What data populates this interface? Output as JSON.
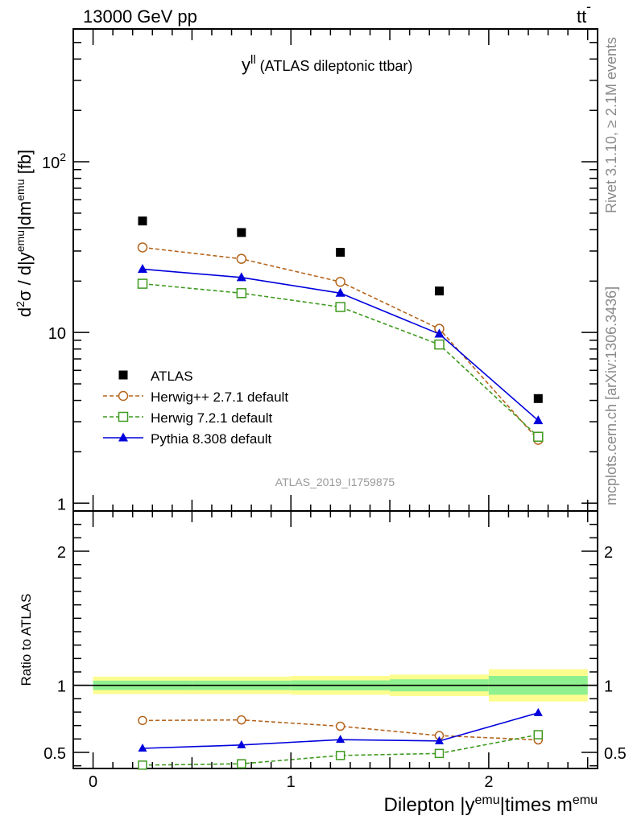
{
  "header": {
    "left": "13000 GeV pp",
    "right_main": "tt",
    "right_bar": "-"
  },
  "side_labels": {
    "rivet": "Rivet 3.1.10, ≥ 2.1M events",
    "mcplots": "mcplots.cern.ch [arXiv:1306.3436]"
  },
  "chart_data": [
    {
      "type": "scatter",
      "panel": "main",
      "title_main": "y",
      "title_sup": "ll",
      "title_rest": " (ATLAS dileptonic ttbar)",
      "watermark": "ATLAS_2019_I1759875",
      "ylabel": {
        "d1": "d",
        "s1": "2",
        "d2": "σ / d|y",
        "s2": "emu",
        "d3": "|dm",
        "s3": "emu",
        "d4": " [fb]"
      },
      "yscale": "log",
      "xlim": [
        -0.1,
        2.55
      ],
      "ylim": [
        0.9,
        600
      ],
      "ytick_labels": [
        {
          "value": 1,
          "label": "1"
        },
        {
          "value": 10,
          "label": "10"
        },
        {
          "value": 100,
          "label_base": "10",
          "label_exp": "2"
        }
      ],
      "legend_position": "middle-left",
      "series": [
        {
          "name": "ATLAS",
          "color": "#000000",
          "marker": "filled-square",
          "line": "none",
          "x": [
            0.25,
            0.75,
            1.25,
            1.75,
            2.25
          ],
          "y": [
            45.0,
            38.5,
            29.5,
            17.5,
            4.1
          ]
        },
        {
          "name": "Herwig++ 2.7.1 default",
          "color": "#b5651d",
          "marker": "open-circle",
          "line": "dashed",
          "x": [
            0.25,
            0.75,
            1.25,
            1.75,
            2.25
          ],
          "y": [
            31.5,
            27.0,
            19.8,
            10.5,
            2.35
          ]
        },
        {
          "name": "Herwig 7.2.1 default",
          "color": "#3f9a1f",
          "marker": "open-square",
          "line": "dashed",
          "x": [
            0.25,
            0.75,
            1.25,
            1.75,
            2.25
          ],
          "y": [
            19.3,
            17.0,
            14.1,
            8.5,
            2.45
          ]
        },
        {
          "name": "Pythia 8.308 default",
          "color": "#0000dd",
          "marker": "filled-triangle",
          "line": "solid",
          "x": [
            0.25,
            0.75,
            1.25,
            1.75,
            2.25
          ],
          "y": [
            23.5,
            21.0,
            17.0,
            9.8,
            3.05
          ]
        }
      ]
    },
    {
      "type": "line",
      "panel": "ratio",
      "ylabel": "Ratio to ATLAS",
      "xlabel": {
        "a": "Dilepton |y",
        "a_sup": "emu",
        "b": "|times m",
        "b_sup": "emu"
      },
      "xlim": [
        -0.1,
        2.55
      ],
      "ylim": [
        0.38,
        2.3
      ],
      "xtick_labels": [
        "0",
        "1",
        "2"
      ],
      "ytick_labels": [
        "0.5",
        "1",
        "2"
      ],
      "reference_line": 1.0,
      "bands": [
        {
          "x0": 0.0,
          "x1": 0.5,
          "yellow": [
            0.935,
            1.065
          ],
          "green": [
            0.965,
            1.035
          ]
        },
        {
          "x0": 0.5,
          "x1": 1.0,
          "yellow": [
            0.935,
            1.065
          ],
          "green": [
            0.965,
            1.035
          ]
        },
        {
          "x0": 1.0,
          "x1": 1.5,
          "yellow": [
            0.93,
            1.07
          ],
          "green": [
            0.963,
            1.037
          ]
        },
        {
          "x0": 1.5,
          "x1": 2.0,
          "yellow": [
            0.92,
            1.08
          ],
          "green": [
            0.955,
            1.045
          ]
        },
        {
          "x0": 2.0,
          "x1": 2.5,
          "yellow": [
            0.88,
            1.12
          ],
          "green": [
            0.93,
            1.07
          ]
        }
      ],
      "series": [
        {
          "name": "Herwig++ 2.7.1 default",
          "color": "#b5651d",
          "marker": "open-circle",
          "line": "dashed",
          "x": [
            0.25,
            0.75,
            1.25,
            1.75,
            2.25
          ],
          "y": [
            0.738,
            0.742,
            0.695,
            0.625,
            0.593
          ]
        },
        {
          "name": "Herwig 7.2.1 default",
          "color": "#3f9a1f",
          "marker": "open-square",
          "line": "dashed",
          "x": [
            0.25,
            0.75,
            1.25,
            1.75,
            2.25
          ],
          "y": [
            0.405,
            0.415,
            0.477,
            0.492,
            0.632
          ]
        },
        {
          "name": "Pythia 8.308 default",
          "color": "#0000dd",
          "marker": "filled-triangle",
          "line": "solid",
          "x": [
            0.25,
            0.75,
            1.25,
            1.75,
            2.25
          ],
          "y": [
            0.53,
            0.555,
            0.595,
            0.585,
            0.795
          ]
        }
      ]
    }
  ]
}
